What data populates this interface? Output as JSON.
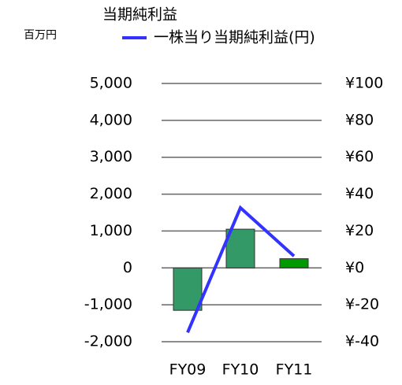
{
  "chart_data": {
    "type": "combo",
    "y_unit_label": "百万円",
    "categories": [
      "FY09",
      "FY10",
      "FY11"
    ],
    "series": [
      {
        "name": "当期純利益",
        "type": "bar",
        "colors": [
          "#339966",
          "#339966",
          "#009900"
        ],
        "values": [
          -1150,
          1050,
          250
        ]
      },
      {
        "name": "一株当り当期純利益(円)",
        "type": "line",
        "axis": "y2",
        "color": "#3333ff",
        "values": [
          -35,
          32.6,
          6.4
        ]
      }
    ],
    "ylim": [
      -2000,
      5000
    ],
    "yticks": [
      {
        "value": -2000,
        "label": "-2,000"
      },
      {
        "value": -1000,
        "label": "-1,000"
      },
      0,
      {
        "value": 1000,
        "label": "1,000"
      },
      {
        "value": 2000,
        "label": "2,000"
      },
      {
        "value": 3000,
        "label": "3,000"
      },
      {
        "value": 4000,
        "label": "4,000"
      },
      {
        "value": 5000,
        "label": "5,000"
      }
    ],
    "y2lim": [
      -40,
      100
    ],
    "y2ticks": [
      {
        "value": -40,
        "label": "¥-40"
      },
      {
        "value": -20,
        "label": "¥-20"
      },
      {
        "value": 0,
        "label": "¥0"
      },
      {
        "value": 20,
        "label": "¥20"
      },
      {
        "value": 40,
        "label": "¥40"
      },
      {
        "value": 60,
        "label": "¥60"
      },
      {
        "value": 80,
        "label": "¥80"
      },
      {
        "value": 100,
        "label": "¥100"
      }
    ],
    "grid": true
  }
}
